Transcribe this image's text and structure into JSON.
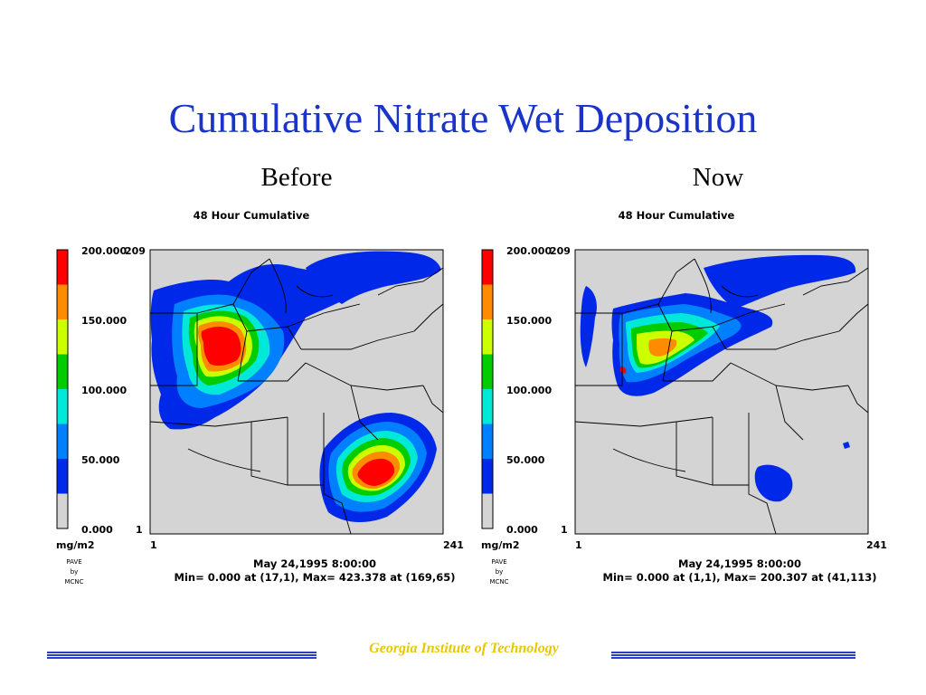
{
  "slide": {
    "title": "Cumulative Nitrate Wet Deposition",
    "footer": "Georgia Institute of Technology"
  },
  "chart_data": [
    {
      "type": "heatmap",
      "heading": "Before",
      "title": "48 Hour Cumulative",
      "colorbar": {
        "ticks": [
          "200.000",
          "150.000",
          "100.000",
          "50.000",
          "0.000"
        ],
        "unit": "mg/m2",
        "range": [
          0,
          200
        ],
        "colors": [
          "#ff0000",
          "#ff8c00",
          "#ccff00",
          "#00cc00",
          "#00e8d8",
          "#0080ff",
          "#0028e8",
          "#d4d4d4"
        ]
      },
      "x_range": [
        "1",
        "241"
      ],
      "y_range": [
        "1",
        "209"
      ],
      "credit": [
        "PAVE",
        "by",
        "MCNC"
      ],
      "date": "May 24,1995 8:00:00",
      "stats": "Min=   0.000 at (17,1), Max= 423.378 at (169,65)",
      "min": 0.0,
      "max": 423.378,
      "min_at": [
        17,
        1
      ],
      "max_at": [
        169,
        65
      ]
    },
    {
      "type": "heatmap",
      "heading": "Now",
      "title": "48 Hour Cumulative",
      "colorbar": {
        "ticks": [
          "200.000",
          "150.000",
          "100.000",
          "50.000",
          "0.000"
        ],
        "unit": "mg/m2",
        "range": [
          0,
          200
        ],
        "colors": [
          "#ff0000",
          "#ff8c00",
          "#ccff00",
          "#00cc00",
          "#00e8d8",
          "#0080ff",
          "#0028e8",
          "#d4d4d4"
        ]
      },
      "x_range": [
        "1",
        "241"
      ],
      "y_range": [
        "1",
        "209"
      ],
      "credit": [
        "PAVE",
        "by",
        "MCNC"
      ],
      "date": "May 24,1995 8:00:00",
      "stats": "Min=   0.000 at (1,1), Max= 200.307 at (41,113)",
      "min": 0.0,
      "max": 200.307,
      "min_at": [
        1,
        1
      ],
      "max_at": [
        41,
        113
      ]
    }
  ]
}
